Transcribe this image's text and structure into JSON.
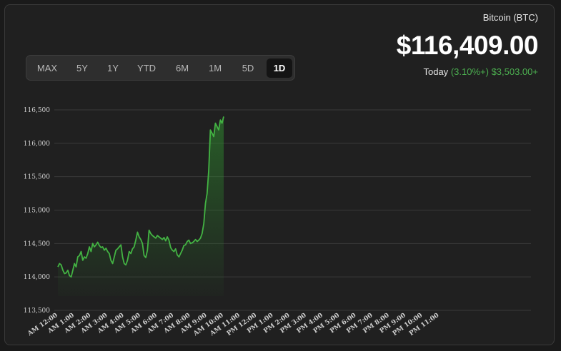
{
  "asset": {
    "name": "Bitcoin (BTC)",
    "price": "$116,409.00",
    "period_label": "Today",
    "change_percent": "(3.10%+)",
    "change_amount": "$3,503.00+"
  },
  "range_tabs": [
    {
      "label": "MAX",
      "active": false
    },
    {
      "label": "5Y",
      "active": false
    },
    {
      "label": "1Y",
      "active": false
    },
    {
      "label": "YTD",
      "active": false
    },
    {
      "label": "6M",
      "active": false
    },
    {
      "label": "1M",
      "active": false
    },
    {
      "label": "5D",
      "active": false
    },
    {
      "label": "1D",
      "active": true
    }
  ],
  "colors": {
    "line": "#43b343",
    "positive": "#4caf50",
    "grid": "#3a3a3a",
    "background": "#202020"
  },
  "chart_data": {
    "type": "area",
    "ylim": [
      113500,
      116500
    ],
    "yticks": [
      116500,
      116000,
      115500,
      115000,
      114500,
      114000,
      113500
    ],
    "ytick_labels": [
      "116,500",
      "116,000",
      "115,500",
      "115,000",
      "114,500",
      "114,000",
      "113,500"
    ],
    "xlim": [
      0,
      23
    ],
    "xtick_labels": [
      "AM 12:00",
      "AM 1:00",
      "AM 2:00",
      "AM 3:00",
      "AM 4:00",
      "AM 5:00",
      "AM 6:00",
      "AM 7:00",
      "AM 8:00",
      "AM 9:00",
      "AM 10:00",
      "AM 11:00",
      "PM 12:00",
      "PM 1:00",
      "PM 2:00",
      "PM 3:00",
      "PM 4:00",
      "PM 5:00",
      "PM 6:00",
      "PM 7:00",
      "PM 8:00",
      "PM 9:00",
      "PM 10:00",
      "PM 11:00"
    ],
    "grid": true,
    "series": [
      {
        "x": [
          0,
          0.1,
          0.2,
          0.3,
          0.4,
          0.5,
          0.6,
          0.7,
          0.8,
          0.9,
          1.0,
          1.1,
          1.2,
          1.3,
          1.4,
          1.5,
          1.6,
          1.7,
          1.8,
          1.9,
          2.0,
          2.1,
          2.2,
          2.3,
          2.4,
          2.5,
          2.6,
          2.7,
          2.8,
          2.9,
          3.0,
          3.1,
          3.2,
          3.3,
          3.4,
          3.5,
          3.6,
          3.7,
          3.8,
          3.9,
          4.0,
          4.1,
          4.2,
          4.3,
          4.4,
          4.5,
          4.6,
          4.7,
          4.8,
          4.9,
          5.0,
          5.1,
          5.2,
          5.3,
          5.4,
          5.5,
          5.6,
          5.7,
          5.8,
          5.9,
          6.0,
          6.1,
          6.2,
          6.3,
          6.4,
          6.5,
          6.6,
          6.7,
          6.8,
          6.9,
          7.0,
          7.1,
          7.2,
          7.3,
          7.4,
          7.5,
          7.6,
          7.7,
          7.8,
          7.9,
          8.0,
          8.1,
          8.2,
          8.3,
          8.4,
          8.5,
          8.6,
          8.7,
          8.8,
          8.9,
          9.0,
          9.1,
          9.2,
          9.3,
          9.4,
          9.5,
          9.6,
          9.7,
          9.8,
          9.9,
          10.0
        ],
        "values": [
          114150,
          114200,
          114180,
          114100,
          114050,
          114060,
          114100,
          114020,
          114000,
          114100,
          114200,
          114150,
          114300,
          114320,
          114380,
          114250,
          114300,
          114280,
          114350,
          114450,
          114380,
          114500,
          114450,
          114480,
          114520,
          114470,
          114440,
          114450,
          114400,
          114430,
          114380,
          114350,
          114250,
          114200,
          114300,
          114400,
          114420,
          114450,
          114480,
          114300,
          114200,
          114180,
          114250,
          114380,
          114350,
          114420,
          114450,
          114550,
          114670,
          114600,
          114560,
          114500,
          114320,
          114290,
          114400,
          114700,
          114650,
          114620,
          114600,
          114580,
          114620,
          114600,
          114580,
          114560,
          114590,
          114540,
          114600,
          114550,
          114440,
          114400,
          114380,
          114420,
          114330,
          114300,
          114350,
          114400,
          114470,
          114480,
          114530,
          114550,
          114500,
          114510,
          114530,
          114560,
          114530,
          114550,
          114580,
          114650,
          114800,
          115100,
          115250,
          115600,
          116200,
          116150,
          116100,
          116300,
          116250,
          116200,
          116350,
          116300,
          116400
        ]
      }
    ]
  }
}
